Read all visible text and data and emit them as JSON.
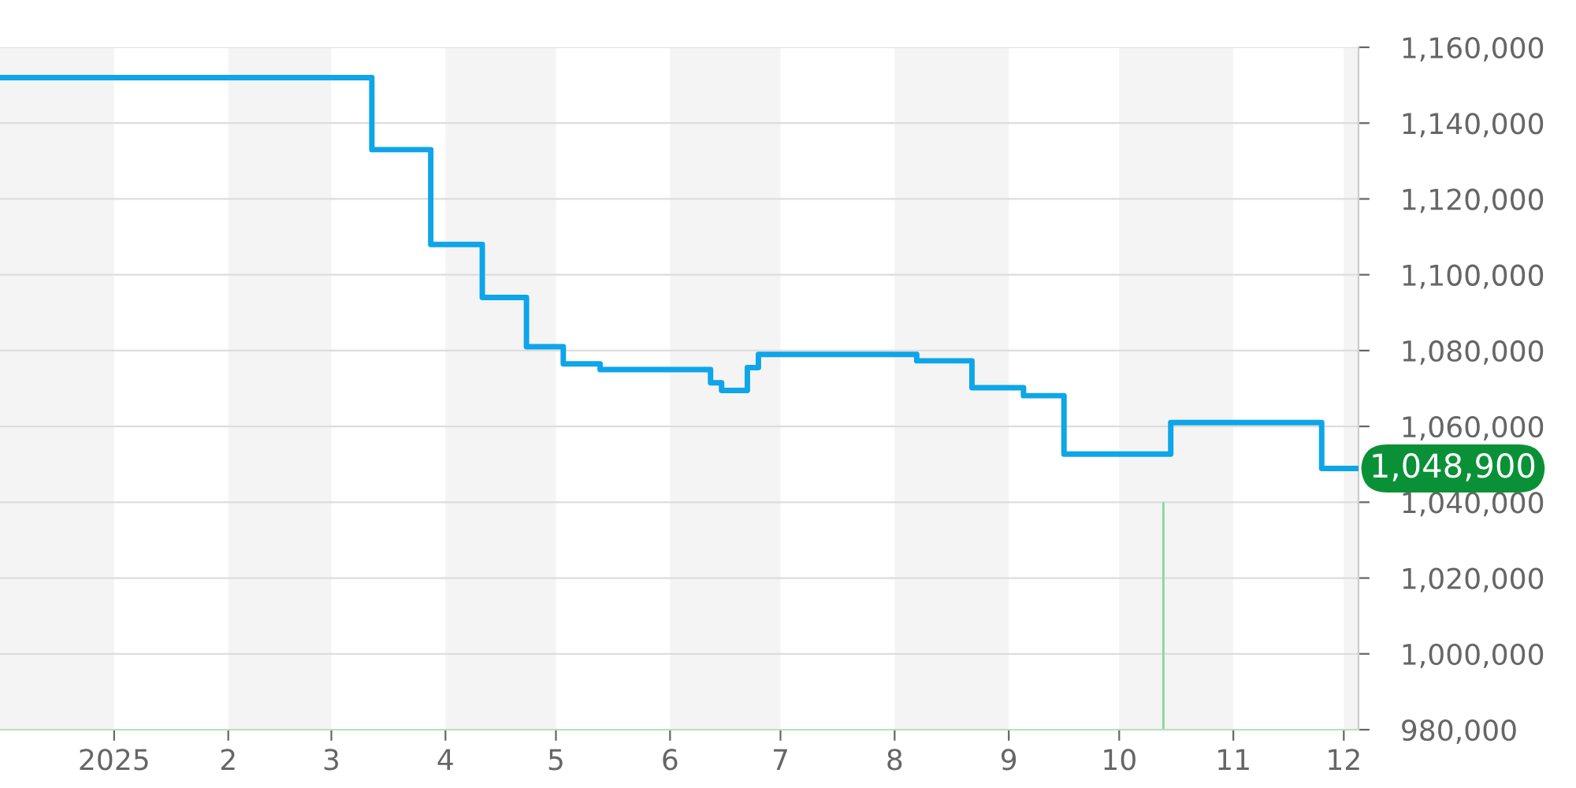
{
  "chart_data": {
    "type": "step",
    "x": [
      "2024-12-01",
      "2025-03-12",
      "2025-03-28",
      "2025-04-11",
      "2025-04-23",
      "2025-05-03",
      "2025-05-13",
      "2025-06-12",
      "2025-06-15",
      "2025-06-22",
      "2025-06-25",
      "2025-08-07",
      "2025-08-22",
      "2025-09-05",
      "2025-09-16",
      "2025-10-15",
      "2025-11-25",
      "2025-12-05"
    ],
    "series": [
      {
        "color": "#0ea5e9",
        "values": [
          1152000,
          1133000,
          1108000,
          1094000,
          1081000,
          1076500,
          1075000,
          1071500,
          1069500,
          1075500,
          1079000,
          1077300,
          1070200,
          1068100,
          1052700,
          1061000,
          1048900,
          1048900
        ]
      },
      {
        "type": "bar",
        "color": "#86d99a",
        "x": [
          "2025-10-13"
        ],
        "values": [
          1040000
        ]
      }
    ],
    "xlim": [
      "2024-12-01",
      "2025-12-05"
    ],
    "xticks": [
      {
        "value": "2025-01-01",
        "label": "2025"
      },
      {
        "value": "2025-02-01",
        "label": "2"
      },
      {
        "value": "2025-03-01",
        "label": "3"
      },
      {
        "value": "2025-04-01",
        "label": "4"
      },
      {
        "value": "2025-05-01",
        "label": "5"
      },
      {
        "value": "2025-06-01",
        "label": "6"
      },
      {
        "value": "2025-07-01",
        "label": "7"
      },
      {
        "value": "2025-08-01",
        "label": "8"
      },
      {
        "value": "2025-09-01",
        "label": "9"
      },
      {
        "value": "2025-10-01",
        "label": "10"
      },
      {
        "value": "2025-11-01",
        "label": "11"
      },
      {
        "value": "2025-12-01",
        "label": "12"
      }
    ],
    "ylim": [
      980000,
      1160000
    ],
    "yticks": [
      {
        "value": 980000,
        "label": "980,000"
      },
      {
        "value": 1000000,
        "label": "1,000,000"
      },
      {
        "value": 1020000,
        "label": "1,020,000"
      },
      {
        "value": 1040000,
        "label": "1,040,000"
      },
      {
        "value": 1060000,
        "label": "1,060,000"
      },
      {
        "value": 1080000,
        "label": "1,080,000"
      },
      {
        "value": 1100000,
        "label": "1,100,000"
      },
      {
        "value": 1120000,
        "label": "1,120,000"
      },
      {
        "value": 1140000,
        "label": "1,140,000"
      },
      {
        "value": 1160000,
        "label": "1,160,000"
      }
    ],
    "bands": [
      {
        "axis": "x",
        "from": "2024-12-01",
        "to": "2025-01-01",
        "color": "#f4f4f4"
      },
      {
        "axis": "x",
        "from": "2025-02-01",
        "to": "2025-03-01",
        "color": "#f4f4f4"
      },
      {
        "axis": "x",
        "from": "2025-04-01",
        "to": "2025-05-01",
        "color": "#f4f4f4"
      },
      {
        "axis": "x",
        "from": "2025-06-01",
        "to": "2025-07-01",
        "color": "#f4f4f4"
      },
      {
        "axis": "x",
        "from": "2025-08-01",
        "to": "2025-09-01",
        "color": "#f4f4f4"
      },
      {
        "axis": "x",
        "from": "2025-10-01",
        "to": "2025-11-01",
        "color": "#f4f4f4"
      },
      {
        "axis": "x",
        "from": "2025-12-01",
        "to": "2025-12-05",
        "color": "#f4f4f4"
      }
    ],
    "annotations": [
      {
        "text": "1,048,900",
        "x": "2025-12-05",
        "y": 1048900
      }
    ],
    "grid": "y",
    "legend": false
  }
}
